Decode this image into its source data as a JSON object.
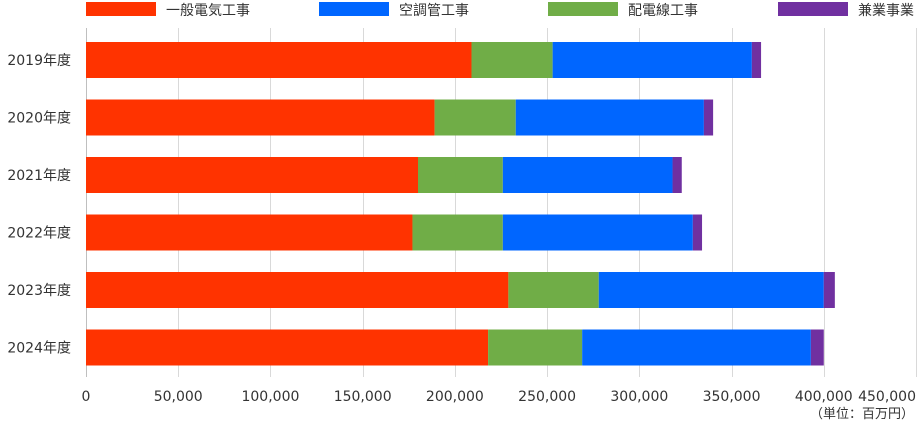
{
  "chart_data": {
    "type": "bar",
    "orientation": "horizontal",
    "stacked": true,
    "categories": [
      "2019年度",
      "2020年度",
      "2021年度",
      "2022年度",
      "2023年度",
      "2024年度"
    ],
    "series": [
      {
        "name": "一般電気工事",
        "color": "#ff3300",
        "values": [
          209000,
          189000,
          180000,
          177000,
          229000,
          218000
        ]
      },
      {
        "name": "配電線工事",
        "color": "#70ad47",
        "values": [
          44000,
          44000,
          46000,
          49000,
          49000,
          51000
        ]
      },
      {
        "name": "空調管工事",
        "color": "#0066ff",
        "values": [
          108000,
          102000,
          92000,
          103000,
          122000,
          124000
        ]
      },
      {
        "name": "兼業事業",
        "color": "#7030a0",
        "values": [
          5000,
          5000,
          5000,
          5000,
          6000,
          7000
        ]
      }
    ],
    "legend_order": [
      "一般電気工事",
      "空調管工事",
      "配電線工事",
      "兼業事業"
    ],
    "legend_position": "top",
    "xlim": [
      0,
      450000
    ],
    "xticks": [
      0,
      50000,
      100000,
      150000,
      200000,
      250000,
      300000,
      350000,
      400000,
      450000
    ],
    "xtick_labels": [
      "0",
      "50,000",
      "100,000",
      "150,000",
      "200,000",
      "250,000",
      "300,000",
      "350,000",
      "400,000",
      "450,000"
    ],
    "unit_label": "（単位：百万円）",
    "grid": true
  }
}
